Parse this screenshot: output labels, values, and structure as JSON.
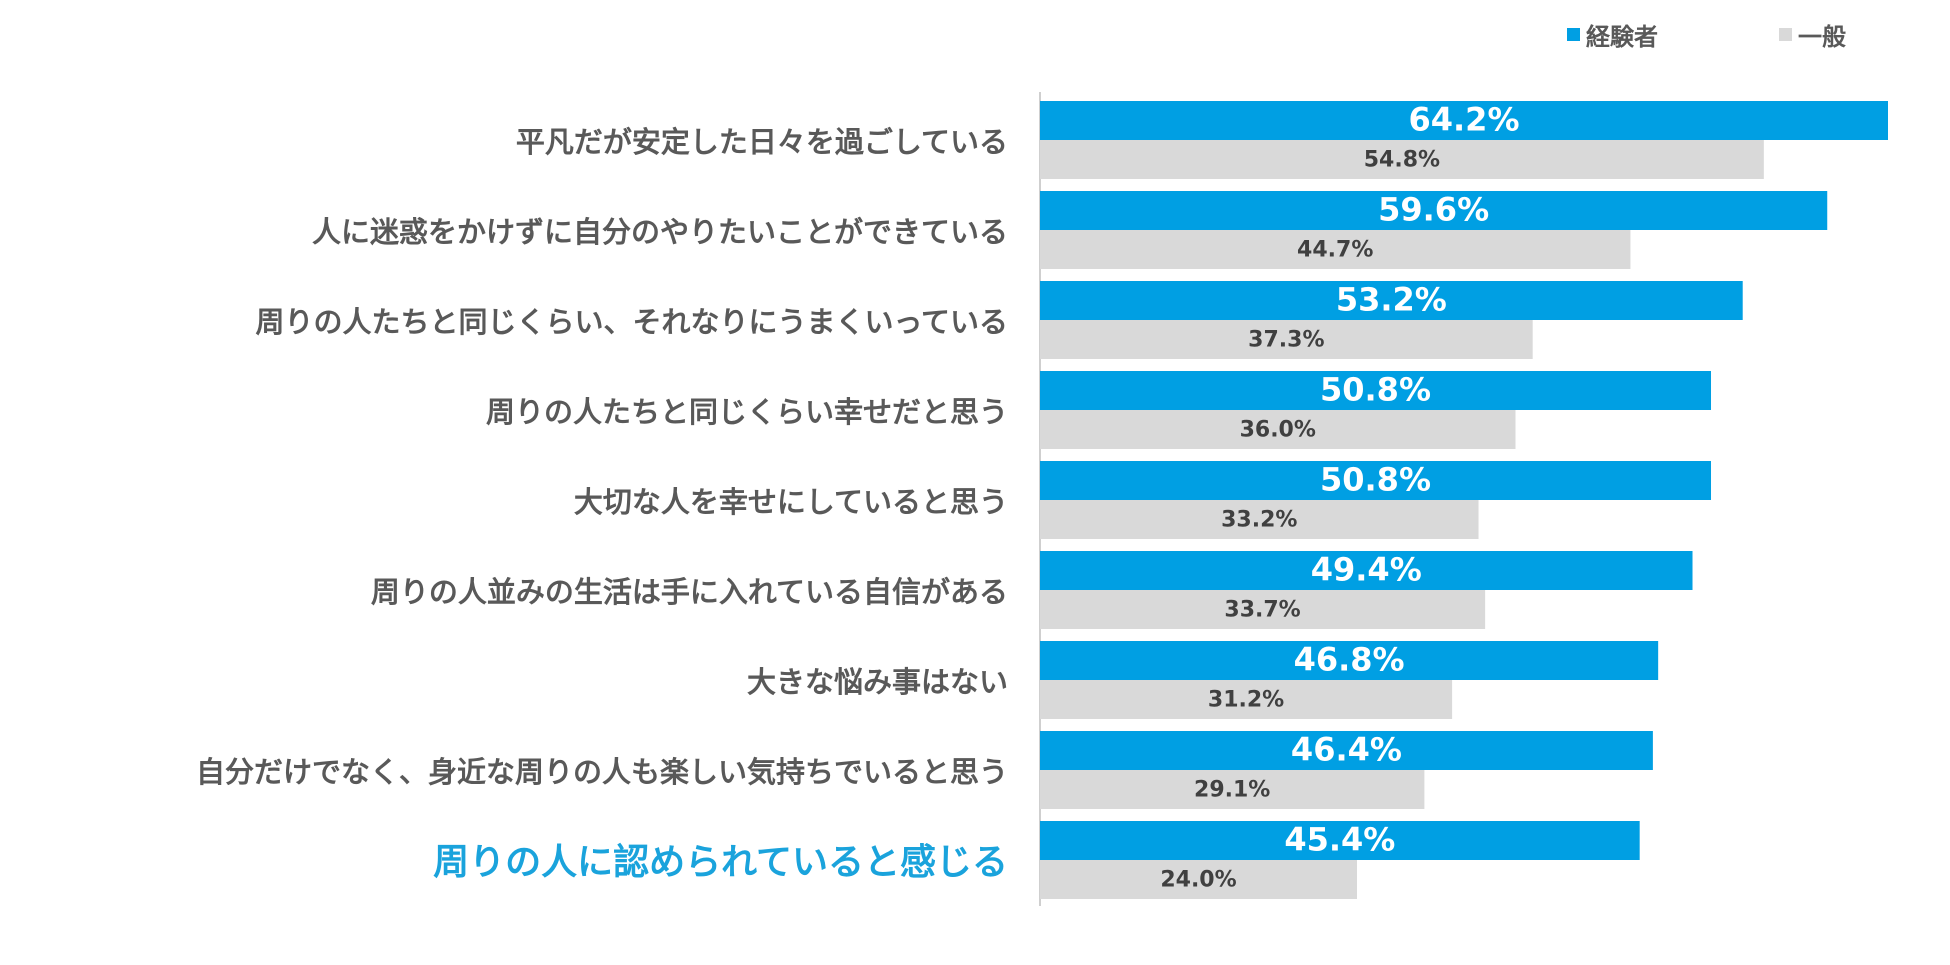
{
  "legend": {
    "experienced": "経験者",
    "general": "一般"
  },
  "colors": {
    "experienced": "#009fe3",
    "general": "#d9d9d9",
    "highlight": "#1aa3dc",
    "label": "#595959",
    "axis": "#bfbfbf"
  },
  "chart_data": {
    "type": "bar",
    "orientation": "horizontal",
    "categories": [
      "平凡だが安定した日々を過ごしている",
      "人に迷惑をかけずに自分のやりたいことができている",
      "周りの人たちと同じくらい、それなりにうまくいっている",
      "周りの人たちと同じくらい幸せだと思う",
      "大切な人を幸せにしていると思う",
      "周りの人並みの生活は手に入れている自信がある",
      "大きな悩み事はない",
      "自分だけでなく、身近な周りの人も楽しい気持ちでいると思う",
      "周りの人に認められていると感じる"
    ],
    "highlighted_category_index": 8,
    "series": [
      {
        "name": "経験者",
        "values": [
          64.2,
          59.6,
          53.2,
          50.8,
          50.8,
          49.4,
          46.8,
          46.4,
          45.4
        ],
        "labels": [
          "64.2%",
          "59.6%",
          "53.2%",
          "50.8%",
          "50.8%",
          "49.4%",
          "46.8%",
          "46.4%",
          "45.4%"
        ]
      },
      {
        "name": "一般",
        "values": [
          54.8,
          44.7,
          37.3,
          36.0,
          33.2,
          33.7,
          31.2,
          29.1,
          24.0
        ],
        "labels": [
          "54.8%",
          "44.7%",
          "37.3%",
          "36.0%",
          "33.2%",
          "33.7%",
          "31.2%",
          "29.1%",
          "24.0%"
        ]
      }
    ],
    "xlim": [
      0,
      64.2
    ],
    "grid": false,
    "legend_position": "top-right"
  }
}
